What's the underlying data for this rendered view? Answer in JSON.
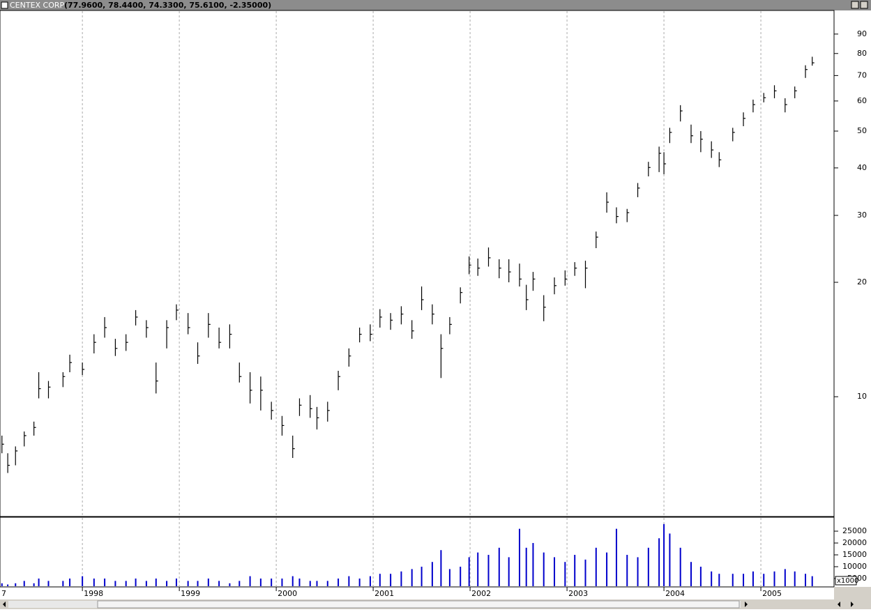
{
  "chart_data": {
    "type": "hlc",
    "title": "CENTEX CORP",
    "subtitle": "(77.9600, 78.4400, 74.3300, 75.6100, -2.35000)",
    "log": true,
    "grid": true,
    "color": "#000000",
    "x": [
      1997.17,
      1997.23,
      1997.31,
      1997.4,
      1997.5,
      1997.55,
      1997.65,
      1997.8,
      1997.87,
      1998.0,
      1998.12,
      1998.23,
      1998.34,
      1998.45,
      1998.55,
      1998.66,
      1998.76,
      1998.87,
      1998.97,
      1999.09,
      1999.19,
      1999.3,
      1999.41,
      1999.52,
      1999.62,
      1999.73,
      1999.84,
      1999.95,
      2000.06,
      2000.17,
      2000.24,
      2000.35,
      2000.42,
      2000.53,
      2000.64,
      2000.75,
      2000.86,
      2000.97,
      2001.07,
      2001.18,
      2001.29,
      2001.4,
      2001.5,
      2001.61,
      2001.7,
      2001.79,
      2001.9,
      2001.99,
      2002.08,
      2002.19,
      2002.3,
      2002.4,
      2002.51,
      2002.58,
      2002.65,
      2002.76,
      2002.87,
      2002.98,
      2003.08,
      2003.19,
      2003.3,
      2003.41,
      2003.51,
      2003.62,
      2003.73,
      2003.84,
      2003.95,
      2004.0,
      2004.06,
      2004.17,
      2004.28,
      2004.38,
      2004.49,
      2004.57,
      2004.71,
      2004.82,
      2004.92,
      2005.03,
      2005.14,
      2005.25,
      2005.35,
      2005.46,
      2005.53
    ],
    "high": [
      7.9,
      7.1,
      7.4,
      8.1,
      8.6,
      11.6,
      11,
      11.6,
      12.9,
      12.3,
      14.6,
      16.2,
      14.2,
      14.6,
      16.9,
      15.9,
      12.3,
      15.9,
      17.5,
      16.6,
      13.9,
      16.6,
      15.2,
      15.5,
      12.3,
      11.6,
      11.3,
      9.7,
      8.9,
      7.9,
      9.9,
      10.1,
      9.4,
      9.7,
      11.7,
      13.4,
      15.2,
      15.5,
      17,
      16.6,
      17.3,
      15.9,
      19.5,
      17.5,
      14.6,
      16.2,
      19.4,
      23.4,
      23.1,
      24.7,
      23,
      23,
      22.4,
      19.7,
      21.3,
      18.5,
      20.6,
      21.5,
      22.6,
      22.8,
      27.2,
      34.5,
      31.5,
      31.2,
      36.5,
      41.5,
      45.5,
      44,
      51,
      58.5,
      52,
      50,
      47,
      44,
      51,
      56,
      60.5,
      63,
      66,
      61,
      65.5,
      74.5,
      78.44
    ],
    "low": [
      7.1,
      6.3,
      6.6,
      7.4,
      7.9,
      9.9,
      9.9,
      10.6,
      11.6,
      11.4,
      13,
      14.3,
      12.8,
      13.2,
      15.4,
      14.3,
      10.2,
      13.4,
      15.9,
      14.6,
      12.2,
      14.3,
      13.4,
      13.4,
      10.9,
      9.6,
      9.2,
      8.7,
      7.9,
      6.9,
      8.9,
      8.8,
      8.2,
      8.6,
      10.4,
      12,
      13.9,
      14,
      15.2,
      15,
      15.5,
      14.2,
      16.9,
      15.5,
      11.2,
      14.6,
      17.6,
      21,
      20.8,
      22,
      20.5,
      20,
      19.5,
      16.9,
      19,
      15.8,
      18.6,
      19.6,
      20.8,
      19.3,
      24.6,
      30.5,
      28.6,
      28.8,
      33.5,
      38,
      39,
      38.5,
      46.5,
      53,
      46.5,
      44,
      42.5,
      40.2,
      47,
      51.5,
      56,
      59.5,
      61,
      56,
      61,
      69,
      74.33
    ],
    "close": [
      7.5,
      6.6,
      7.2,
      7.9,
      8.3,
      10.5,
      10.6,
      11.3,
      12.3,
      11.8,
      13.9,
      15.2,
      13.4,
      13.9,
      16.2,
      15.2,
      11,
      15.2,
      16.9,
      15.2,
      12.8,
      15.5,
      13.9,
      14.6,
      11.3,
      10.4,
      10.4,
      9.2,
      8.4,
      7.3,
      9.5,
      9.3,
      8.8,
      9.2,
      11.3,
      12.8,
      14.6,
      14.6,
      16.2,
      15.9,
      16.5,
      14.9,
      18,
      16.5,
      13.4,
      15.5,
      18.8,
      22.2,
      21.8,
      23.2,
      21.8,
      21.3,
      20.4,
      18,
      20.4,
      17.2,
      19.6,
      20.4,
      21.8,
      21.8,
      26.3,
      32.5,
      29.8,
      30.5,
      35.4,
      40.1,
      43.7,
      41,
      49.6,
      56.5,
      48.6,
      47.6,
      44.6,
      42,
      49.6,
      54,
      58.7,
      61.2,
      63.8,
      58.7,
      63.8,
      72.6,
      75.61
    ],
    "xlim": [
      1997.15,
      2005.755
    ],
    "xticks": [
      {
        "value": 1997,
        "label": "7"
      },
      1998,
      1999,
      2000,
      2001,
      2002,
      2003,
      2004,
      2005
    ],
    "ylim": [
      4.86,
      103.4
    ],
    "yticks": [
      10,
      20,
      30,
      40,
      50,
      60,
      70,
      80,
      90
    ],
    "volume": {
      "color": "#0000cc",
      "unit_label": "x1000",
      "values": [
        3000,
        2500,
        3000,
        4000,
        3000,
        5000,
        4000,
        4000,
        5000,
        6000,
        5000,
        5000,
        4000,
        4000,
        5000,
        4000,
        5000,
        4000,
        5000,
        4000,
        4000,
        5000,
        4000,
        3000,
        4000,
        6000,
        5000,
        5000,
        5000,
        6000,
        5000,
        4000,
        4000,
        4000,
        5000,
        6000,
        5000,
        6000,
        7000,
        7000,
        8000,
        9000,
        10000,
        12000,
        17000,
        9000,
        10000,
        14000,
        16000,
        15000,
        18000,
        14000,
        26000,
        18000,
        20000,
        16000,
        14000,
        12000,
        15000,
        13000,
        18000,
        16000,
        26000,
        15000,
        14000,
        18000,
        22000,
        28000,
        24000,
        18000,
        12000,
        10000,
        8000,
        7000,
        7000,
        7000,
        8000,
        7000,
        8000,
        9000,
        8000,
        7000,
        6000
      ],
      "ylim": [
        0,
        30600
      ],
      "yticks": [
        5000,
        10000,
        15000,
        20000,
        25000
      ]
    }
  }
}
